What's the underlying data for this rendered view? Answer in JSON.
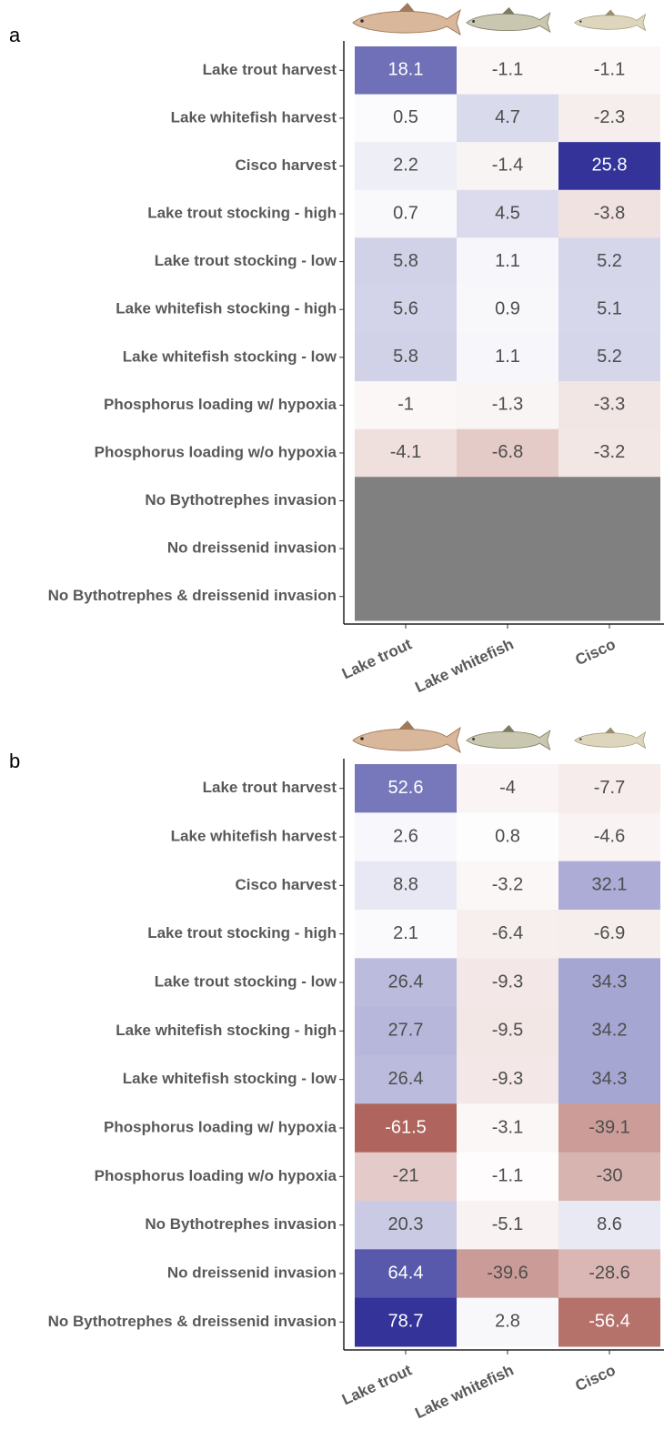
{
  "chart_data": [
    {
      "type": "heatmap",
      "panel": "a",
      "rows": [
        "Lake trout harvest",
        "Lake whitefish harvest",
        "Cisco harvest",
        "Lake trout stocking - high",
        "Lake trout stocking - low",
        "Lake whitefish stocking - high",
        "Lake whitefish stocking - low",
        "Phosphorus loading w/ hypoxia",
        "Phosphorus loading w/o hypoxia",
        "No Bythotrephes invasion",
        "No dreissenid invasion",
        "No Bythotrephes & dreissenid invasion"
      ],
      "columns": [
        "Lake trout",
        "Lake whitefish",
        "Cisco"
      ],
      "values": [
        [
          18.1,
          -1.1,
          -1.1
        ],
        [
          0.5,
          4.7,
          -2.3
        ],
        [
          2.2,
          -1.4,
          25.8
        ],
        [
          0.7,
          4.5,
          -3.8
        ],
        [
          5.8,
          1.1,
          5.2
        ],
        [
          5.6,
          0.9,
          5.1
        ],
        [
          5.8,
          1.1,
          5.2
        ],
        [
          -1,
          -1.3,
          -3.3
        ],
        [
          -4.1,
          -6.8,
          -3.2
        ],
        [
          null,
          null,
          null
        ],
        [
          null,
          null,
          null
        ],
        [
          null,
          null,
          null
        ]
      ],
      "low_color": "#983a30",
      "mid_color": "#ffffff",
      "high_color": "#33339a",
      "missing_color": "#808080"
    },
    {
      "type": "heatmap",
      "panel": "b",
      "rows": [
        "Lake trout harvest",
        "Lake whitefish harvest",
        "Cisco harvest",
        "Lake trout stocking - high",
        "Lake trout stocking - low",
        "Lake whitefish stocking - high",
        "Lake whitefish stocking - low",
        "Phosphorus loading w/ hypoxia",
        "Phosphorus loading w/o hypoxia",
        "No Bythotrephes invasion",
        "No dreissenid invasion",
        "No Bythotrephes & dreissenid invasion"
      ],
      "columns": [
        "Lake trout",
        "Lake whitefish",
        "Cisco"
      ],
      "values": [
        [
          52.6,
          -4,
          -7.7
        ],
        [
          2.6,
          0.8,
          -4.6
        ],
        [
          8.8,
          -3.2,
          32.1
        ],
        [
          2.1,
          -6.4,
          -6.9
        ],
        [
          26.4,
          -9.3,
          34.3
        ],
        [
          27.7,
          -9.5,
          34.2
        ],
        [
          26.4,
          -9.3,
          34.3
        ],
        [
          -61.5,
          -3.1,
          -39.1
        ],
        [
          -21,
          -1.1,
          -30
        ],
        [
          20.3,
          -5.1,
          8.6
        ],
        [
          64.4,
          -39.6,
          -28.6
        ],
        [
          78.7,
          2.8,
          -56.4
        ]
      ],
      "low_color": "#983a30",
      "mid_color": "#ffffff",
      "high_color": "#33339a",
      "missing_color": "#808080"
    }
  ]
}
